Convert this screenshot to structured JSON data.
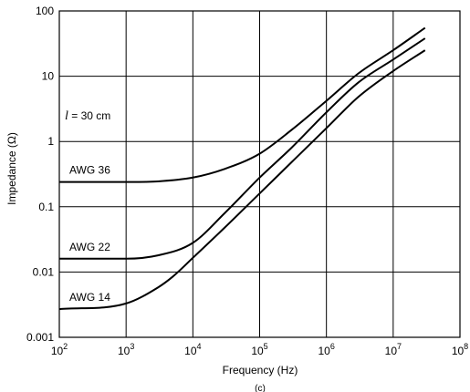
{
  "chart_data": {
    "type": "line",
    "xlabel": "Frequency (Hz)",
    "ylabel": "Impedance (Ω)",
    "caption": "(c)",
    "annotation": "l = 30 cm",
    "x_scale": "log",
    "y_scale": "log",
    "xlim": [
      100,
      100000000
    ],
    "ylim": [
      0.001,
      100
    ],
    "grid": true,
    "x_ticks": [
      {
        "base": "10",
        "exp": "2",
        "value": 100
      },
      {
        "base": "10",
        "exp": "3",
        "value": 1000
      },
      {
        "base": "10",
        "exp": "4",
        "value": 10000
      },
      {
        "base": "10",
        "exp": "5",
        "value": 100000
      },
      {
        "base": "10",
        "exp": "6",
        "value": 1000000
      },
      {
        "base": "10",
        "exp": "7",
        "value": 10000000
      },
      {
        "base": "10",
        "exp": "8",
        "value": 100000000
      }
    ],
    "y_ticks": [
      {
        "label": "100",
        "value": 100
      },
      {
        "label": "10",
        "value": 10
      },
      {
        "label": "1",
        "value": 1
      },
      {
        "label": "0.1",
        "value": 0.1
      },
      {
        "label": "0.01",
        "value": 0.01
      },
      {
        "label": "0.001",
        "value": 0.001
      }
    ],
    "series": [
      {
        "name": "AWG 36",
        "x": [
          100,
          1000,
          3000,
          10000,
          30000,
          100000,
          300000,
          1000000,
          3000000,
          10000000,
          30000000
        ],
        "y": [
          0.24,
          0.24,
          0.245,
          0.28,
          0.38,
          0.65,
          1.5,
          4.2,
          11,
          25,
          55
        ]
      },
      {
        "name": "AWG 22",
        "x": [
          100,
          1000,
          3000,
          10000,
          30000,
          100000,
          300000,
          1000000,
          3000000,
          10000000,
          30000000
        ],
        "y": [
          0.016,
          0.016,
          0.018,
          0.028,
          0.08,
          0.28,
          0.8,
          2.8,
          8,
          18,
          38
        ]
      },
      {
        "name": "AWG 14",
        "x": [
          100,
          1000,
          3000,
          5000,
          10000,
          30000,
          100000,
          300000,
          1000000,
          3000000,
          10000000,
          30000000
        ],
        "y": [
          0.0027,
          0.0033,
          0.0058,
          0.0085,
          0.0165,
          0.048,
          0.16,
          0.48,
          1.6,
          4.8,
          12,
          25
        ]
      }
    ]
  }
}
